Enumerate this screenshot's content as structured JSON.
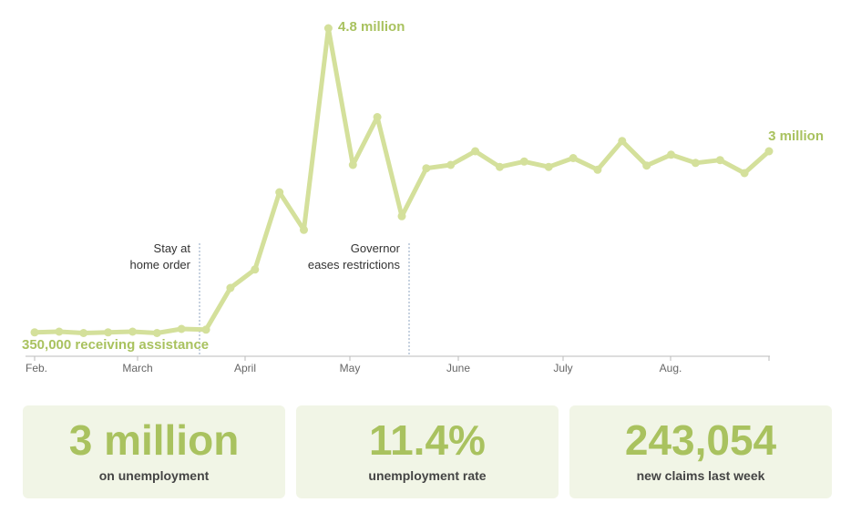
{
  "chart_data": {
    "type": "line",
    "series": [
      {
        "values": [
          0.35,
          0.36,
          0.34,
          0.35,
          0.36,
          0.34,
          0.4,
          0.39,
          1.0,
          1.27,
          2.4,
          1.85,
          4.8,
          2.8,
          3.5,
          2.05,
          2.75,
          2.8,
          3.0,
          2.77,
          2.85,
          2.77,
          2.9,
          2.73,
          3.15,
          2.79,
          2.95,
          2.83,
          2.87,
          2.68,
          3.0
        ]
      }
    ],
    "x_tick_labels": [
      "Feb.",
      "March",
      "April",
      "May",
      "June",
      "July",
      "Aug."
    ],
    "annotations": {
      "start": "350,000 receiving assistance",
      "peak": "4.8 million",
      "end": "3 million",
      "stay_at_home": [
        "Stay at",
        "home order"
      ],
      "governor": [
        "Governor",
        "eases restrictions"
      ]
    },
    "ylim": [
      0,
      5
    ],
    "grid": false,
    "colors": {
      "line": "#d4e09b",
      "label": "#a9c25f",
      "axis": "#bbbbbb",
      "marker_line": "#8fa6c0"
    }
  },
  "stats": [
    {
      "value": "3 million",
      "label": "on unemployment"
    },
    {
      "value": "11.4%",
      "label": "unemployment rate"
    },
    {
      "value": "243,054",
      "label": "new claims last week"
    }
  ]
}
